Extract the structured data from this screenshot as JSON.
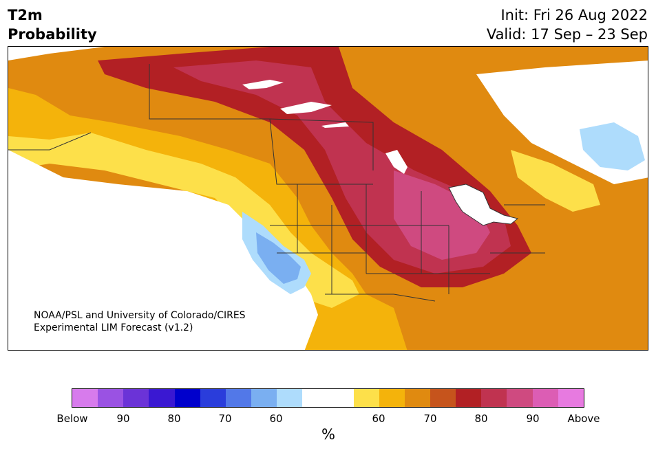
{
  "header": {
    "title_line1": "T2m",
    "title_line2": "Probability",
    "init": "Init: Fri 26 Aug 2022",
    "valid": "Valid: 17 Sep – 23 Sep"
  },
  "credit": {
    "line1": "NOAA/PSL and University of Colorado/CIRES",
    "line2": "Experimental LIM Forecast (v1.2)"
  },
  "map": {
    "region": "North America",
    "colors": {
      "water": "#ffffff",
      "land_neutral": "#ffffff",
      "border_lines": "#333333"
    }
  },
  "colorbar": {
    "unit": "%",
    "colors": [
      "#d77bec",
      "#9a52e3",
      "#6b33d7",
      "#3a18d2",
      "#0000cc",
      "#2a3ddb",
      "#5278e8",
      "#7aaff1",
      "#aedcfc",
      "#ffffff",
      "#ffffff",
      "#fde04a",
      "#f4b30b",
      "#e08a10",
      "#c6541c",
      "#b22024",
      "#c03350",
      "#cf4a80",
      "#dc5db4",
      "#e77ae0"
    ],
    "tick_labels": [
      "Below",
      "90",
      "80",
      "70",
      "60",
      "60",
      "70",
      "80",
      "90",
      "Above"
    ]
  }
}
